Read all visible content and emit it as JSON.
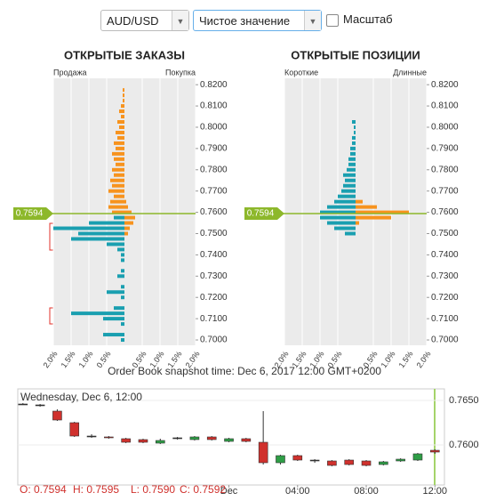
{
  "controls": {
    "pair": "AUD/USD",
    "mode": "Чистое значение",
    "scale_label": "Масштаб"
  },
  "caption": "Order Book snapshot time: Dec 6, 2017 12:00 GMT+0200",
  "chart_data": [
    {
      "type": "hbar",
      "title": "ОТКРЫТЫЕ ЗАКАЗЫ",
      "left_label": "Продажа",
      "right_label": "Покупка",
      "y": [
        0.7,
        0.7025,
        0.705,
        0.7075,
        0.71,
        0.7125,
        0.715,
        0.7175,
        0.72,
        0.7225,
        0.725,
        0.7275,
        0.73,
        0.7325,
        0.735,
        0.7375,
        0.74,
        0.7425,
        0.745,
        0.7475,
        0.75,
        0.7525,
        0.755,
        0.7575,
        0.76,
        0.7625,
        0.765,
        0.7675,
        0.77,
        0.7725,
        0.775,
        0.7775,
        0.78,
        0.7825,
        0.785,
        0.7875,
        0.79,
        0.7925,
        0.795,
        0.7975,
        0.8,
        0.8025,
        0.805,
        0.8075,
        0.81,
        0.8125,
        0.815,
        0.8175,
        0.82
      ],
      "series": [
        {
          "color": "#f7931e",
          "values": [
            null,
            null,
            null,
            null,
            null,
            null,
            null,
            null,
            null,
            null,
            null,
            null,
            null,
            null,
            null,
            null,
            null,
            null,
            null,
            null,
            null,
            null,
            null,
            null,
            -0.35,
            -0.45,
            -0.4,
            -0.3,
            -0.45,
            -0.35,
            -0.4,
            -0.3,
            -0.35,
            -0.25,
            -0.3,
            -0.35,
            -0.25,
            -0.3,
            -0.2,
            -0.25,
            -0.15,
            -0.2,
            -0.1,
            -0.15,
            -0.1,
            -0.05,
            -0.05,
            -0.05,
            null
          ]
        },
        {
          "color": "#1a9fb0",
          "values": [
            -0.1,
            -0.6,
            null,
            -0.1,
            -0.6,
            -1.5,
            -0.3,
            null,
            -0.1,
            -0.5,
            -0.1,
            null,
            -0.2,
            -0.1,
            null,
            -0.1,
            -0.1,
            -0.2,
            -0.5,
            -1.5,
            -1.3,
            -2.0,
            -1.0,
            -0.3,
            null,
            null,
            null,
            null,
            null,
            null,
            null,
            null,
            null,
            null,
            null,
            null,
            null,
            null,
            null,
            null,
            null,
            null,
            null,
            null,
            null,
            null,
            null,
            null,
            null
          ]
        },
        {
          "color": "#f7931e",
          "values": [
            null,
            null,
            null,
            null,
            null,
            null,
            null,
            null,
            null,
            null,
            null,
            null,
            null,
            null,
            null,
            null,
            null,
            null,
            null,
            null,
            0.1,
            0.15,
            0.25,
            0.3,
            0.2,
            0.1,
            0.05,
            null,
            null,
            null,
            null,
            null,
            null,
            null,
            null,
            null,
            null,
            null,
            null,
            null,
            null,
            null,
            null,
            null,
            null,
            null,
            null,
            null,
            null
          ]
        }
      ],
      "xlim": [
        -2,
        2
      ],
      "xticks": [
        {
          "value": -2,
          "label": "2.0%"
        },
        {
          "value": -1.5,
          "label": "1.5%"
        },
        {
          "value": -1,
          "label": "1.0%"
        },
        {
          "value": -0.5,
          "label": "0.5%"
        },
        {
          "value": 0.5,
          "label": "0.5%"
        },
        {
          "value": 1,
          "label": "1.0%"
        },
        {
          "value": 1.5,
          "label": "1.5%"
        },
        {
          "value": 2,
          "label": "2.0%"
        }
      ],
      "ylim": [
        0.6975,
        0.823
      ],
      "yticks": [
        {
          "value": 0.7,
          "label": "0.7000"
        },
        {
          "value": 0.71,
          "label": "0.7100"
        },
        {
          "value": 0.72,
          "label": "0.7200"
        },
        {
          "value": 0.73,
          "label": "0.7300"
        },
        {
          "value": 0.74,
          "label": "0.7400"
        },
        {
          "value": 0.75,
          "label": "0.7500"
        },
        {
          "value": 0.76,
          "label": "0.7600"
        },
        {
          "value": 0.77,
          "label": "0.7700"
        },
        {
          "value": 0.78,
          "label": "0.7800"
        },
        {
          "value": 0.79,
          "label": "0.7900"
        },
        {
          "value": 0.8,
          "label": "0.8000"
        },
        {
          "value": 0.81,
          "label": "0.8100"
        },
        {
          "value": 0.82,
          "label": "0.8200"
        }
      ],
      "marker": {
        "value": 0.7594,
        "label": "0.7594"
      },
      "marker_color": "#8db82b"
    },
    {
      "type": "hbar",
      "title": "ОТКРЫТЫЕ ПОЗИЦИИ",
      "left_label": "Короткие",
      "right_label": "Длинные",
      "y": [
        0.7,
        0.7025,
        0.705,
        0.7075,
        0.71,
        0.7125,
        0.715,
        0.7175,
        0.72,
        0.7225,
        0.725,
        0.7275,
        0.73,
        0.7325,
        0.735,
        0.7375,
        0.74,
        0.7425,
        0.745,
        0.7475,
        0.75,
        0.7525,
        0.755,
        0.7575,
        0.76,
        0.7625,
        0.765,
        0.7675,
        0.77,
        0.7725,
        0.775,
        0.7775,
        0.78,
        0.7825,
        0.785,
        0.7875,
        0.79,
        0.7925,
        0.795,
        0.7975,
        0.8,
        0.8025,
        0.805,
        0.8075,
        0.81,
        0.8125,
        0.815,
        0.8175,
        0.82
      ],
      "series": [
        {
          "color": "#1a9fb0",
          "values": [
            null,
            null,
            null,
            null,
            null,
            null,
            null,
            null,
            null,
            null,
            null,
            null,
            null,
            null,
            null,
            null,
            null,
            null,
            null,
            null,
            -0.3,
            -0.6,
            -0.8,
            -1.0,
            -1.0,
            -0.8,
            -0.6,
            -0.5,
            -0.4,
            -0.35,
            -0.3,
            -0.35,
            -0.25,
            -0.2,
            -0.2,
            -0.15,
            -0.15,
            -0.1,
            -0.1,
            -0.05,
            -0.05,
            -0.1,
            null,
            null,
            null,
            null,
            null,
            null,
            null
          ]
        },
        {
          "color": "#f7931e",
          "values": [
            null,
            null,
            null,
            null,
            null,
            null,
            null,
            null,
            null,
            null,
            null,
            null,
            null,
            null,
            null,
            null,
            null,
            null,
            null,
            null,
            null,
            null,
            0.1,
            1.0,
            1.5,
            0.6,
            0.2,
            null,
            null,
            null,
            null,
            null,
            null,
            null,
            null,
            null,
            null,
            null,
            null,
            null,
            null,
            null,
            null,
            null,
            null,
            null,
            null,
            null,
            null
          ]
        }
      ],
      "xlim": [
        -2,
        2
      ],
      "xticks": [
        {
          "value": -2,
          "label": "2.0%"
        },
        {
          "value": -1.5,
          "label": "1.5%"
        },
        {
          "value": -1,
          "label": "1.0%"
        },
        {
          "value": -0.5,
          "label": "0.5%"
        },
        {
          "value": 0.5,
          "label": "0.5%"
        },
        {
          "value": 1,
          "label": "1.0%"
        },
        {
          "value": 1.5,
          "label": "1.5%"
        },
        {
          "value": 2,
          "label": "2.0%"
        }
      ],
      "ylim": [
        0.6975,
        0.823
      ],
      "yticks": [
        {
          "value": 0.7,
          "label": "0.7000"
        },
        {
          "value": 0.71,
          "label": "0.7100"
        },
        {
          "value": 0.72,
          "label": "0.7200"
        },
        {
          "value": 0.73,
          "label": "0.7300"
        },
        {
          "value": 0.74,
          "label": "0.7400"
        },
        {
          "value": 0.75,
          "label": "0.7500"
        },
        {
          "value": 0.76,
          "label": "0.7600"
        },
        {
          "value": 0.77,
          "label": "0.7700"
        },
        {
          "value": 0.78,
          "label": "0.7800"
        },
        {
          "value": 0.79,
          "label": "0.7900"
        },
        {
          "value": 0.8,
          "label": "0.8000"
        },
        {
          "value": 0.81,
          "label": "0.8100"
        },
        {
          "value": 0.82,
          "label": "0.8200"
        }
      ],
      "marker": {
        "value": 0.7594,
        "label": "0.7594"
      },
      "marker_color": "#8db82b"
    },
    {
      "type": "candlestick",
      "title": "Wednesday, Dec 6, 12:00",
      "x": [
        -12,
        -11,
        -10,
        -9,
        -8,
        -7,
        -6,
        -5,
        -4,
        -3,
        -2,
        -1,
        0,
        1,
        2,
        3,
        4,
        5,
        6,
        7,
        8,
        9,
        10,
        11,
        12
      ],
      "open": [
        0.7646,
        0.7645,
        0.7638,
        0.7625,
        0.761,
        0.7609,
        0.7607,
        0.7606,
        0.7602,
        0.7608,
        0.7606,
        0.7609,
        0.7604,
        0.7607,
        0.7603,
        0.758,
        0.7588,
        0.7583,
        0.7582,
        0.7583,
        0.7582,
        0.7578,
        0.7582,
        0.7583,
        0.7594
      ],
      "high": [
        0.7647,
        0.7646,
        0.764,
        0.7626,
        0.7612,
        0.761,
        0.7608,
        0.7607,
        0.7607,
        0.7609,
        0.761,
        0.761,
        0.7608,
        0.7608,
        0.7638,
        0.7589,
        0.7589,
        0.7584,
        0.7583,
        0.7584,
        0.7583,
        0.7582,
        0.7585,
        0.7591,
        0.7595
      ],
      "low": [
        0.7645,
        0.7643,
        0.7627,
        0.7609,
        0.7608,
        0.7607,
        0.7602,
        0.7602,
        0.7601,
        0.7606,
        0.7605,
        0.7605,
        0.7603,
        0.7603,
        0.7578,
        0.7578,
        0.7582,
        0.758,
        0.7576,
        0.7577,
        0.7576,
        0.7577,
        0.7581,
        0.7582,
        0.759
      ],
      "close": [
        0.7646,
        0.7645,
        0.7628,
        0.761,
        0.761,
        0.7608,
        0.7603,
        0.7603,
        0.7605,
        0.7608,
        0.7609,
        0.7606,
        0.7607,
        0.7604,
        0.758,
        0.7588,
        0.7583,
        0.7583,
        0.7577,
        0.7578,
        0.7577,
        0.7581,
        0.7584,
        0.759,
        0.7592
      ],
      "up_color": "#2e9e46",
      "down_color": "#d0312d",
      "flat_color": "#333333",
      "xlim": [
        -12.3,
        12.4
      ],
      "xticks": [
        {
          "value": 0,
          "label": "Dec"
        },
        {
          "value": 4,
          "label": "04:00"
        },
        {
          "value": 8,
          "label": "08:00"
        },
        {
          "value": 12,
          "label": "12:00"
        }
      ],
      "ylim": [
        0.7555,
        0.766
      ],
      "yticks": [
        {
          "value": 0.76,
          "label": "0.7600"
        },
        {
          "value": 0.765,
          "label": "0.7650"
        }
      ],
      "ohlc_labels": [
        "O: 0.7594",
        "H: 0.7595",
        "L: 0.7590",
        "C: 0.7592"
      ],
      "ohlc_color": "#d0312d"
    }
  ]
}
